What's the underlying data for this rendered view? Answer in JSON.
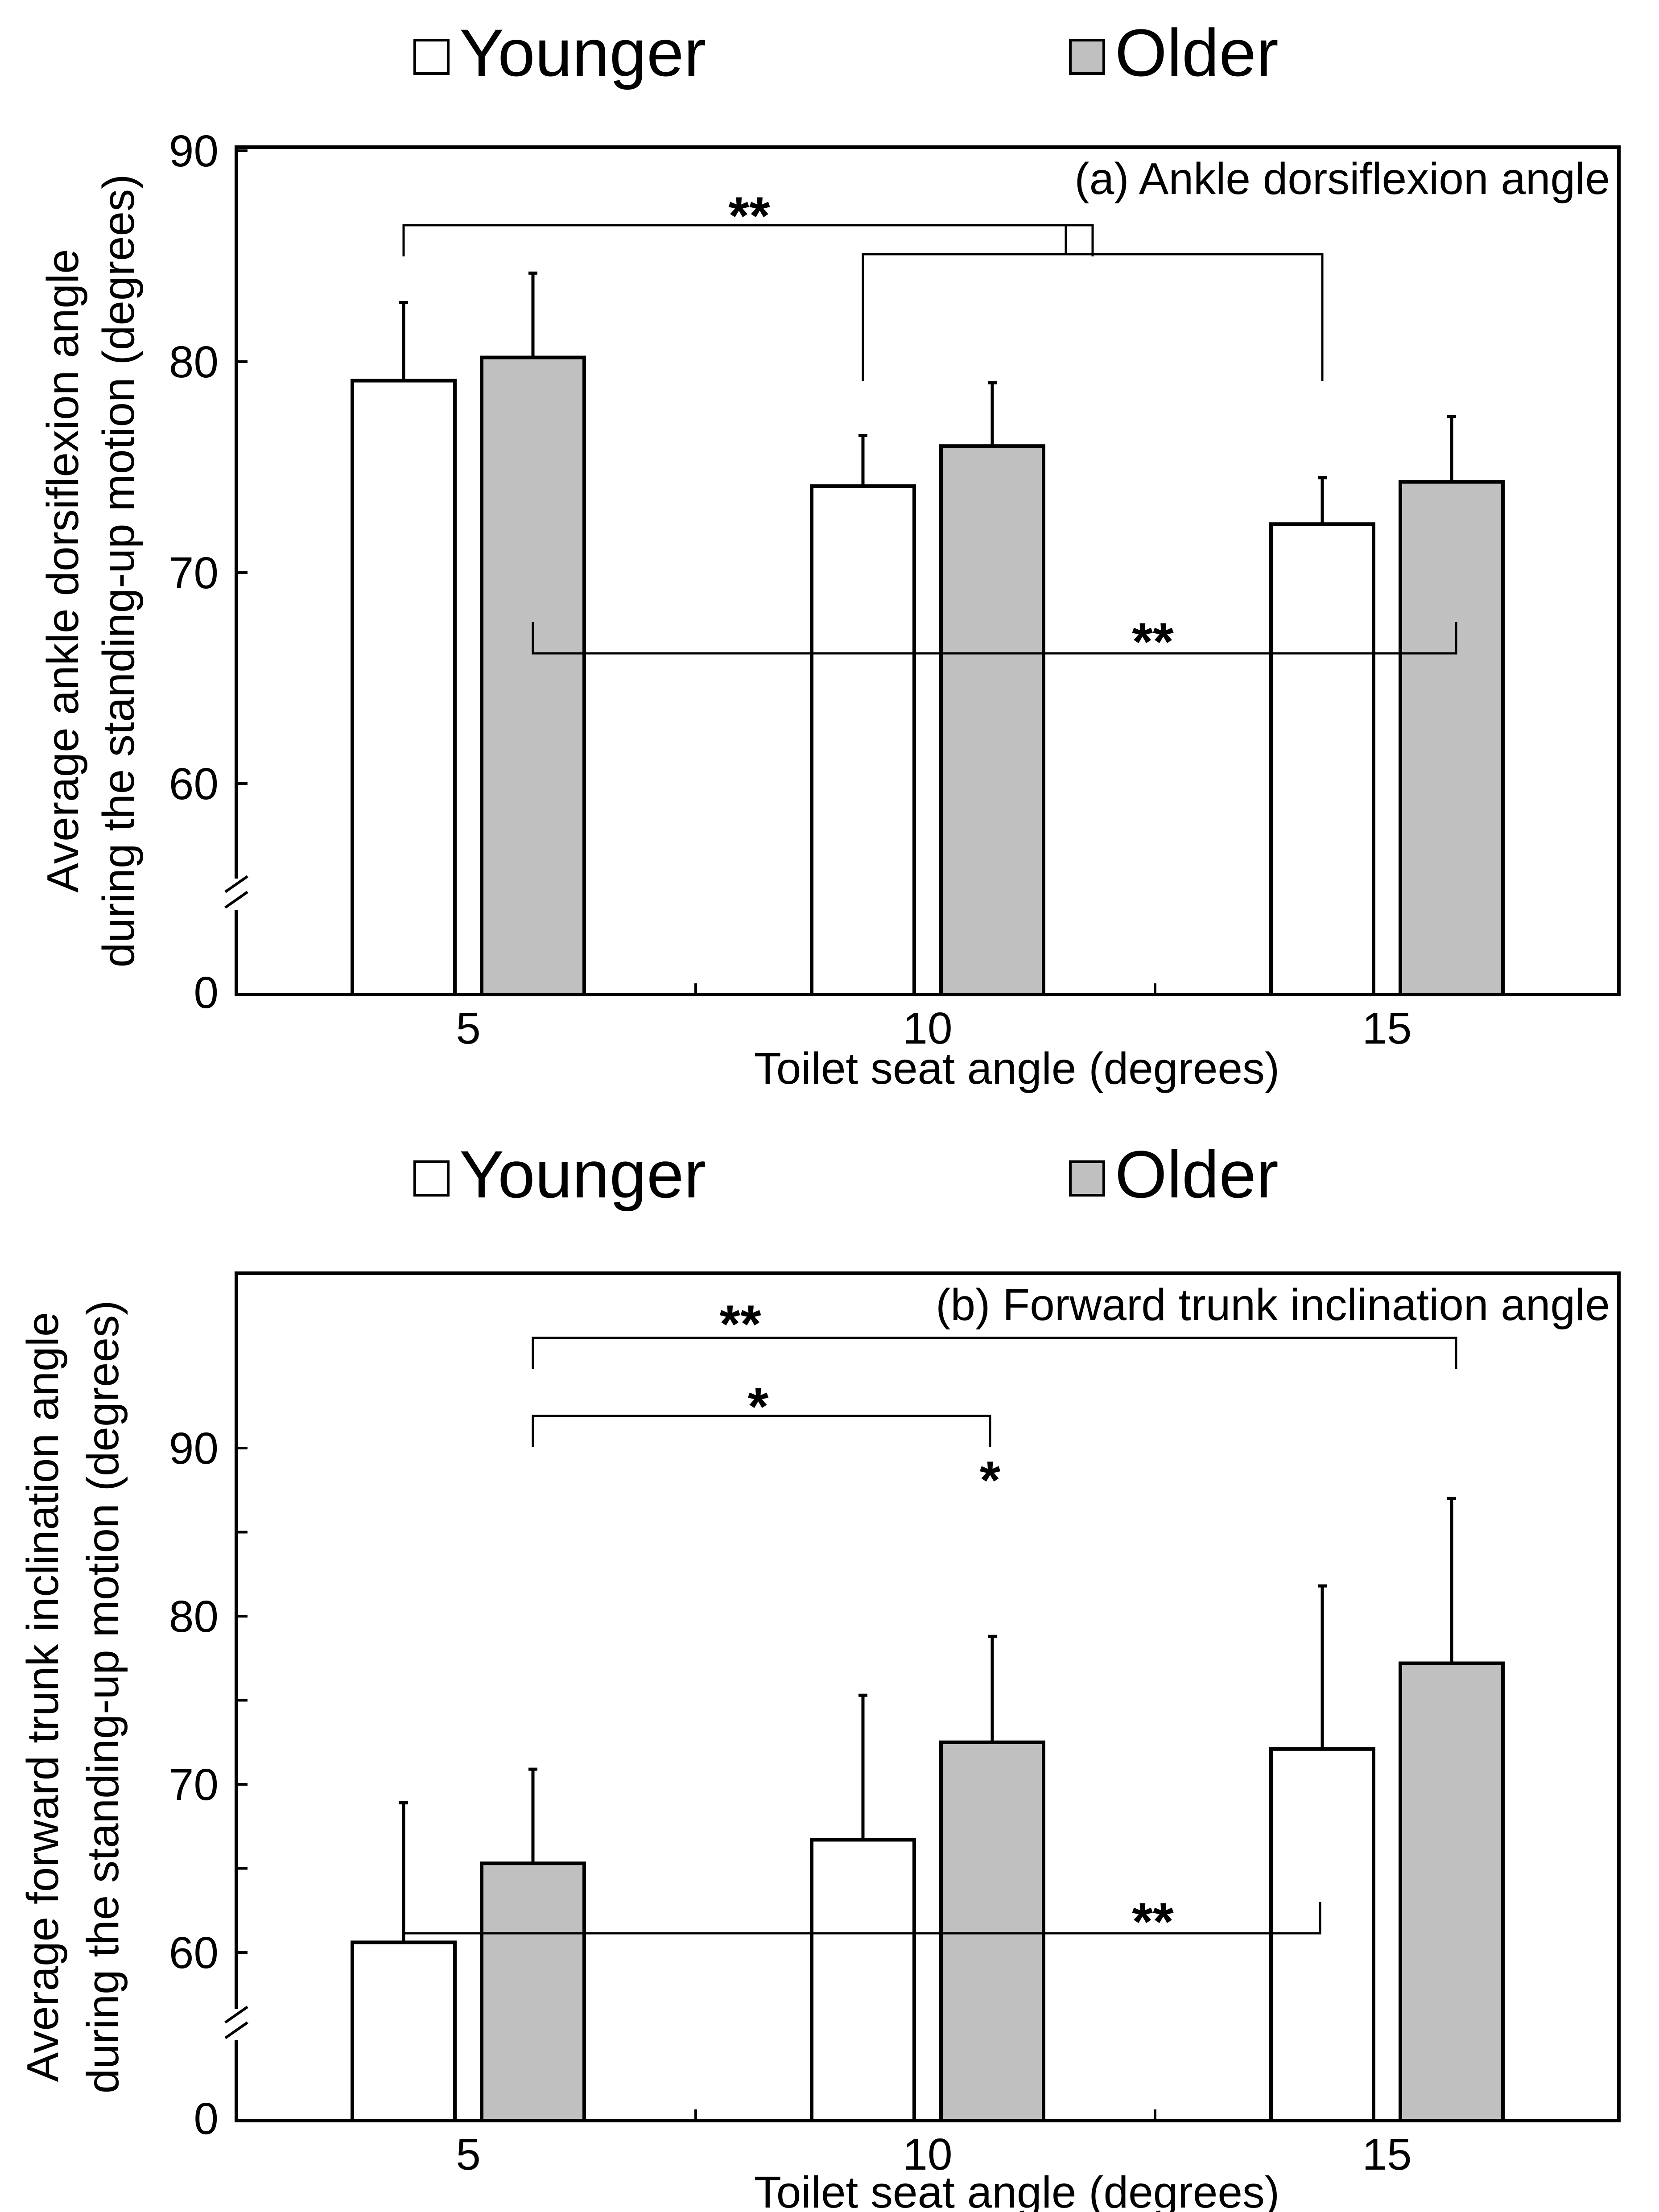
{
  "chart_data": [
    {
      "type": "bar",
      "panel_label": "(a) Ankle dorsiflexion angle",
      "xlabel": "Toilet seat angle (degrees)",
      "ylabel": [
        "Average ankle dorsiflexion angle",
        "during the standing-up motion (degrees)"
      ],
      "categories": [
        "5",
        "10",
        "15"
      ],
      "ylim": [
        60,
        90
      ],
      "y_ticks": [
        "0",
        "60",
        "70",
        "80",
        "90"
      ],
      "axis_break": true,
      "legend_position": "top",
      "series": [
        {
          "name": "Younger",
          "color": "#ffffff",
          "values": [
            79.1,
            74.1,
            72.3
          ],
          "errors": [
            3.7,
            2.4,
            2.2
          ]
        },
        {
          "name": "Older",
          "color": "#c0c0c0",
          "values": [
            80.2,
            76.0,
            74.3
          ],
          "errors": [
            4.0,
            3.0,
            3.1
          ]
        }
      ],
      "significance": [
        {
          "label": "**",
          "between": "5 vs 10 and 15 (Younger)",
          "orientation": "down"
        },
        {
          "label": "**",
          "between": "5 vs 15 (Older)",
          "orientation": "up"
        }
      ]
    },
    {
      "type": "bar",
      "panel_label": "(b) Forward trunk inclination angle",
      "xlabel": "Toilet seat angle (degrees)",
      "ylabel": [
        "Average forward trunk inclination angle",
        "during the standing-up motion (degrees)"
      ],
      "categories": [
        "5",
        "10",
        "15"
      ],
      "ylim": [
        55,
        90
      ],
      "y_ticks": [
        "0",
        "60",
        "70",
        "80",
        "90"
      ],
      "axis_break": true,
      "legend_position": "top",
      "series": [
        {
          "name": "Younger",
          "color": "#ffffff",
          "values": [
            60.6,
            66.7,
            72.1
          ],
          "errors": [
            8.3,
            8.6,
            9.7
          ]
        },
        {
          "name": "Older",
          "color": "#c0c0c0",
          "values": [
            65.3,
            72.5,
            77.2
          ],
          "errors": [
            5.6,
            6.3,
            9.8
          ]
        }
      ],
      "significance": [
        {
          "label": "**",
          "between": "5 vs 15 (Older)",
          "orientation": "down"
        },
        {
          "label": "*",
          "between": "5 vs 10 (Older)",
          "orientation": "down"
        },
        {
          "label": "*",
          "between": "10 Younger vs Older",
          "orientation": "marker"
        },
        {
          "label": "**",
          "between": "5 vs 15 (Younger)",
          "orientation": "up"
        }
      ]
    }
  ]
}
